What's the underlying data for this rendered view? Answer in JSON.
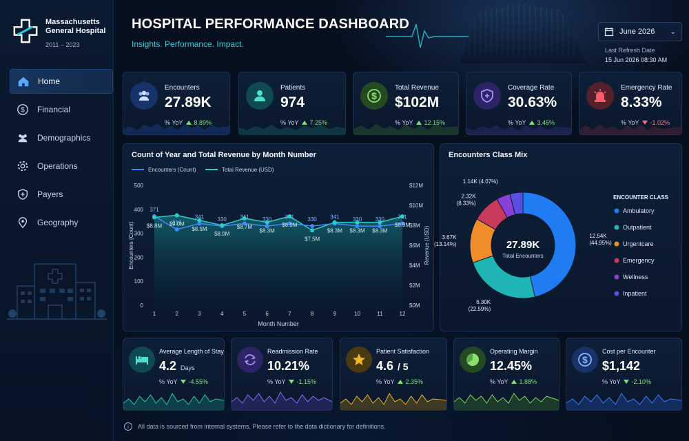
{
  "brand": {
    "name_line1": "Massachusetts",
    "name_line2": "General Hospital",
    "years": "2011 – 2023"
  },
  "nav": [
    {
      "label": "Home",
      "icon": "home-icon",
      "active": true
    },
    {
      "label": "Financial",
      "icon": "dollar-icon"
    },
    {
      "label": "Demographics",
      "icon": "people-icon"
    },
    {
      "label": "Operations",
      "icon": "gear-icon"
    },
    {
      "label": "Payers",
      "icon": "shield-icon"
    },
    {
      "label": "Geography",
      "icon": "location-pin-icon"
    }
  ],
  "header": {
    "title": "HOSPITAL PERFORMANCE DASHBOARD",
    "subtitle": "Insights. Performance. Impact.",
    "month": "June 2026",
    "refresh_label": "Last Refresh Date",
    "refresh_value": "15 Jun 2026 08:30 AM"
  },
  "kpis": [
    {
      "label": "Encounters",
      "value": "27.89K",
      "yoy_label": "% YoY",
      "yoy": "8.89%",
      "dir": "up",
      "icon": "people-icon",
      "color": "#3b7bff"
    },
    {
      "label": "Patients",
      "value": "974",
      "yoy_label": "% YoY",
      "yoy": "7.25%",
      "dir": "up",
      "icon": "person-icon",
      "color": "#2fc4b2"
    },
    {
      "label": "Total Revenue",
      "value": "$102M",
      "yoy_label": "% YoY",
      "yoy": "12.15%",
      "dir": "up",
      "icon": "dollar-icon",
      "color": "#7ed957"
    },
    {
      "label": "Coverage Rate",
      "value": "30.63%",
      "yoy_label": "% YoY",
      "yoy": "3.45%",
      "dir": "up",
      "icon": "shield-plus-icon",
      "color": "#8a6cff"
    },
    {
      "label": "Emergency Rate",
      "value": "8.33%",
      "yoy_label": "% YoY",
      "yoy": "-1.02%",
      "dir": "down",
      "icon": "siren-icon",
      "color": "#ff4d5e"
    }
  ],
  "bottom_kpis": [
    {
      "label": "Average Length of Stay",
      "value": "4.2",
      "unit": "Days",
      "yoy_label": "% YoY",
      "yoy": "-4.55%",
      "dir": "down",
      "icon": "bed-icon",
      "color": "#2fc4b2"
    },
    {
      "label": "Readmission Rate",
      "value": "10.21%",
      "unit": "",
      "yoy_label": "% YoY",
      "yoy": "-1.15%",
      "dir": "down",
      "icon": "refresh-icon",
      "color": "#8a6cff"
    },
    {
      "label": "Patient Satisfaction",
      "value": "4.6",
      "unit": "/ 5",
      "yoy_label": "% YoY",
      "yoy": "2.35%",
      "dir": "up",
      "icon": "star-icon",
      "color": "#f0b429"
    },
    {
      "label": "Operating Margin",
      "value": "12.45%",
      "unit": "",
      "yoy_label": "% YoY",
      "yoy": "1.88%",
      "dir": "up",
      "icon": "pie-icon",
      "color": "#7ed957"
    },
    {
      "label": "Cost per Encounter",
      "value": "$1,142",
      "unit": "",
      "yoy_label": "% YoY",
      "yoy": "-2.10%",
      "dir": "down",
      "icon": "dollar-icon",
      "color": "#3b7bff"
    }
  ],
  "line_panel_title": "Count of Year and Total Revenue by Month Number",
  "donut_panel_title": "Encounters Class Mix",
  "footer": "All data is sourced from internal systems. Please refer to the data dictionary for definitions.",
  "chart_data": [
    {
      "type": "line",
      "title": "Count of Year and Total Revenue by Month Number",
      "xlabel": "Month Number",
      "ylabel": "Encounters (Count)",
      "y2label": "Revenue (USD)",
      "x": [
        1,
        2,
        3,
        4,
        5,
        6,
        7,
        8,
        9,
        10,
        11,
        12
      ],
      "ylim": [
        0,
        500
      ],
      "y2lim": [
        0,
        12
      ],
      "yticks": [
        "0",
        "100",
        "200",
        "300",
        "400",
        "500"
      ],
      "y2ticks": [
        "$0M",
        "$2M",
        "$4M",
        "$6M",
        "$8M",
        "$10M",
        "$12M"
      ],
      "legend": "top-left",
      "series": [
        {
          "name": "Encounters (Count)",
          "axis": "left",
          "color": "#3b8bff",
          "values": [
            371,
            316,
            341,
            330,
            341,
            330,
            341,
            330,
            341,
            330,
            330,
            341
          ],
          "labels": [
            "371",
            "316",
            "341",
            "330",
            "341",
            "330",
            "341",
            "330",
            "341",
            "330",
            "330",
            "341"
          ]
        },
        {
          "name": "Total Revenue (USD)",
          "axis": "right",
          "color": "#2ad0c6",
          "values": [
            8.8,
            9.0,
            8.5,
            8.0,
            8.7,
            8.3,
            8.9,
            7.5,
            8.3,
            8.3,
            8.3,
            8.9
          ],
          "labels": [
            "$8.8M",
            "$9.0M",
            "$8.5M",
            "$8.0M",
            "$8.7M",
            "$8.3M",
            "$8.9M",
            "$7.5M",
            "$8.3M",
            "$8.3M",
            "$8.3M",
            "$8.9M"
          ]
        }
      ]
    },
    {
      "type": "pie",
      "title": "Encounters Class Mix",
      "center_value": "27.89K",
      "center_label": "Total Encounters",
      "legend_title": "ENCOUNTER CLASS",
      "legend": "right",
      "slices": [
        {
          "name": "Ambulatory",
          "value": 12540,
          "label": "12.54K",
          "pct": "(44.95%)",
          "color": "#1f7cf2"
        },
        {
          "name": "Outpatient",
          "value": 6300,
          "label": "6.30K",
          "pct": "(22.59%)",
          "color": "#1fb5b5"
        },
        {
          "name": "Urgentcare",
          "value": 3670,
          "label": "3.67K",
          "pct": "(13.14%)",
          "color": "#f08c2a"
        },
        {
          "name": "Emergency",
          "value": 2320,
          "label": "2.32K",
          "pct": "(8.33%)",
          "color": "#c73a5a"
        },
        {
          "name": "Wellness",
          "value": 1140,
          "label": "1.14K",
          "pct": "(4.07%)",
          "color": "#8a3fd6"
        },
        {
          "name": "Inpatient",
          "value": 1070,
          "label": "",
          "pct": "",
          "color": "#5a4fe0"
        }
      ]
    }
  ]
}
